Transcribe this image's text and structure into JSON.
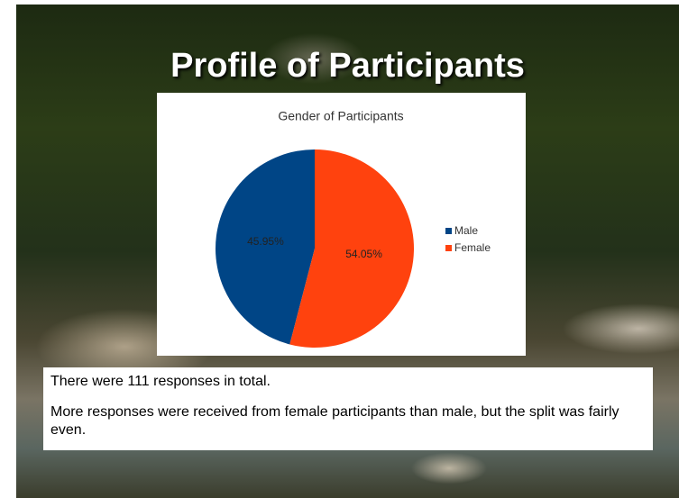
{
  "slide_title": "Profile of Participants",
  "chart_data": {
    "type": "pie",
    "title": "Gender of Participants",
    "categories": [
      "Male",
      "Female"
    ],
    "values": [
      45.95,
      54.05
    ],
    "value_labels": [
      "45.95%",
      "54.05%"
    ],
    "colors": [
      "#004586",
      "#ff420e"
    ],
    "legend": "right"
  },
  "notes": [
    "There were 111 responses in total.",
    "More responses were received from female participants than male, but the split was fairly even."
  ]
}
